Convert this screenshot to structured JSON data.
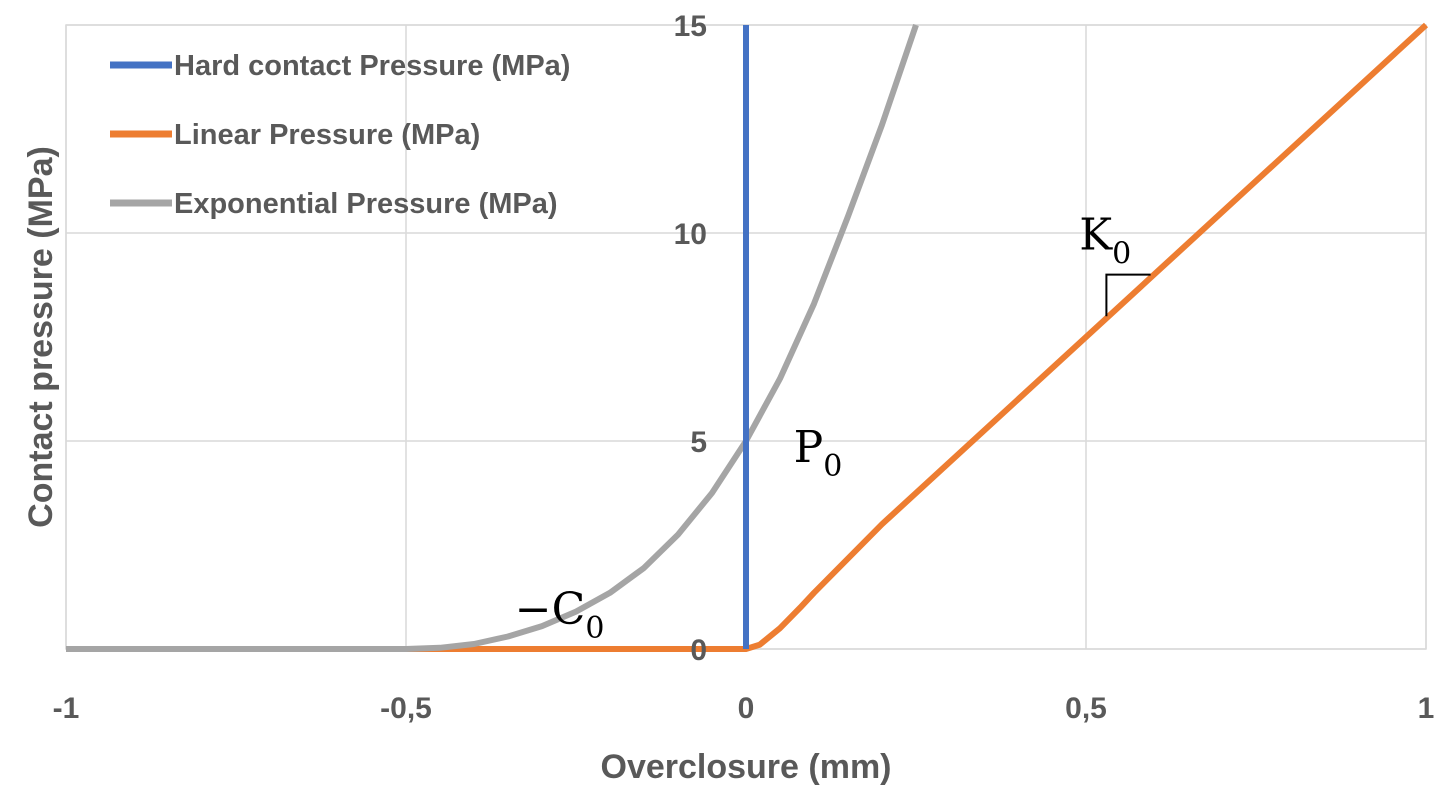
{
  "chart_data": {
    "type": "line",
    "title": "",
    "xlabel": "Overclosure (mm)",
    "ylabel": "Contact pressure (MPa)",
    "xlim": [
      -1,
      1
    ],
    "ylim": [
      0,
      15
    ],
    "x_ticks": [
      -1,
      -0.5,
      0,
      0.5,
      1
    ],
    "x_tick_labels": [
      "-1",
      "-0,5",
      "0",
      "0,5",
      "1"
    ],
    "y_ticks": [
      0,
      5,
      10,
      15
    ],
    "y_tick_labels": [
      "0",
      "5",
      "10",
      "15"
    ],
    "grid": true,
    "legend_position": "top-left",
    "series": [
      {
        "name": "Hard contact Pressure (MPa)",
        "color": "#4472C4",
        "x": [
          0,
          0
        ],
        "y": [
          0,
          15
        ]
      },
      {
        "name": "Linear Pressure (MPa)",
        "color": "#ED7D31",
        "x": [
          -1,
          -0.45,
          -0.2,
          0,
          0.02,
          0.05,
          0.08,
          0.1,
          0.2,
          0.4,
          0.6,
          0.8,
          1.0
        ],
        "y": [
          0,
          0,
          0,
          0,
          0.1,
          0.5,
          1.0,
          1.35,
          3.0,
          6.0,
          9.0,
          12.0,
          15.0
        ]
      },
      {
        "name": "Exponential Pressure (MPa)",
        "color": "#A5A5A5",
        "x": [
          -1,
          -0.5,
          -0.45,
          -0.4,
          -0.35,
          -0.3,
          -0.25,
          -0.2,
          -0.15,
          -0.1,
          -0.05,
          0,
          0.05,
          0.1,
          0.15,
          0.2,
          0.25
        ],
        "y": [
          0,
          0,
          0.03,
          0.12,
          0.3,
          0.55,
          0.9,
          1.35,
          1.95,
          2.75,
          3.75,
          5.0,
          6.5,
          8.3,
          10.4,
          12.6,
          15.0
        ]
      }
    ],
    "annotations": [
      {
        "main": "P",
        "sub": "0",
        "x": 0.07,
        "y": 4.5
      },
      {
        "main": "K",
        "sub": "0",
        "x": 0.49,
        "y": 9.6
      },
      {
        "main": "−C",
        "sub": "0",
        "x": -0.34,
        "y": 0.6
      }
    ],
    "slope_marker": {
      "x1": 0.53,
      "x2": 0.595,
      "y_top": 9.0,
      "y_bottom": 8.0
    }
  }
}
